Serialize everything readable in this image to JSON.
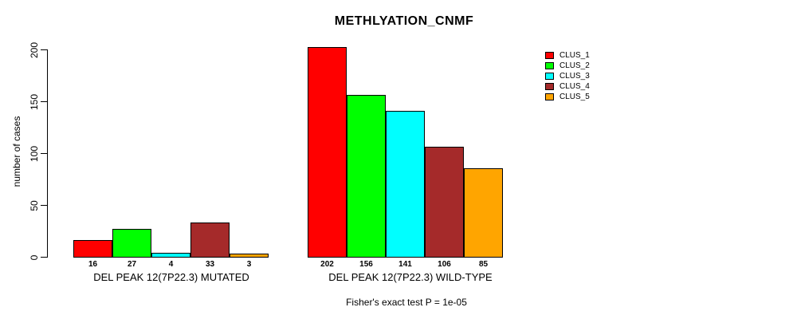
{
  "title": "METHLYATION_CNMF",
  "chart_data": {
    "type": "bar",
    "title": "METHLYATION_CNMF",
    "ylabel": "number of cases",
    "xlabel": "",
    "ylim": [
      0,
      200
    ],
    "yticks": [
      0,
      50,
      100,
      150,
      200
    ],
    "grid": false,
    "legend_position": "right",
    "categories": [
      "DEL PEAK 12(7P22.3) MUTATED",
      "DEL PEAK 12(7P22.3) WILD-TYPE"
    ],
    "series": [
      {
        "name": "CLUS_1",
        "color": "#FF0000",
        "values": [
          16,
          202
        ]
      },
      {
        "name": "CLUS_2",
        "color": "#00FF00",
        "values": [
          27,
          156
        ]
      },
      {
        "name": "CLUS_3",
        "color": "#00FFFF",
        "values": [
          4,
          141
        ]
      },
      {
        "name": "CLUS_4",
        "color": "#A52A2A",
        "values": [
          33,
          106
        ]
      },
      {
        "name": "CLUS_5",
        "color": "#FFA500",
        "values": [
          3,
          85
        ]
      }
    ],
    "bar_value_labels": [
      [
        "16",
        "27",
        "4",
        "33",
        "3"
      ],
      [
        "202",
        "156",
        "141",
        "106",
        "85"
      ]
    ],
    "annotation": "Fisher's exact test P = 1e-05"
  }
}
